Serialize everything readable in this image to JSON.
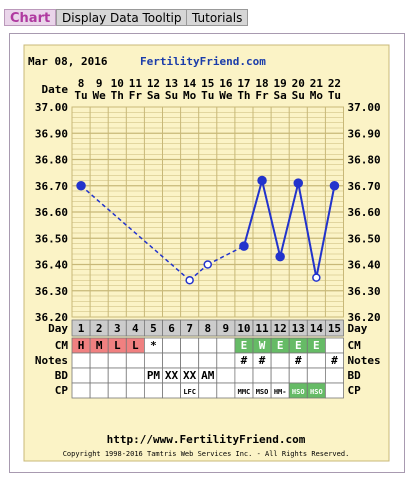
{
  "tabs": [
    {
      "label": "Chart",
      "active": true
    },
    {
      "label": "Display Data Tooltip",
      "active": false
    },
    {
      "label": "Tutorials",
      "active": false
    }
  ],
  "header": {
    "date_label": "Mar 08, 2016",
    "site_label": "FertilityFriend.com",
    "footer_url": "http://www.FertilityFriend.com",
    "copyright": "Copyright 1998-2016 Tamtris Web Services Inc. - All Rights Reserved."
  },
  "row_labels": {
    "date": "Date",
    "day": "Day",
    "cm": "CM",
    "notes": "Notes",
    "bd": "BD",
    "cp": "CP"
  },
  "colors": {
    "background": "#fbf3c6",
    "grid": "#c8b878",
    "line": "#2233cc",
    "cm_red": "#f08080",
    "cm_green": "#66bb66",
    "day_header": "#cccccc"
  },
  "chart_data": {
    "type": "line",
    "title": "",
    "ylabel": "",
    "ylim": [
      36.2,
      37.0
    ],
    "y_ticks": [
      "37.00",
      "36.90",
      "36.80",
      "36.70",
      "36.60",
      "36.50",
      "36.40",
      "36.30",
      "36.20"
    ],
    "dates": [
      "8",
      "9",
      "10",
      "11",
      "12",
      "13",
      "14",
      "15",
      "16",
      "17",
      "18",
      "19",
      "20",
      "21",
      "22"
    ],
    "weekdays": [
      "Tu",
      "We",
      "Th",
      "Fr",
      "Sa",
      "Su",
      "Mo",
      "Tu",
      "We",
      "Th",
      "Fr",
      "Sa",
      "Su",
      "Mo",
      "Tu"
    ],
    "cycle_days": [
      "1",
      "2",
      "3",
      "4",
      "5",
      "6",
      "7",
      "8",
      "9",
      "10",
      "11",
      "12",
      "13",
      "14",
      "15"
    ],
    "temperatures": [
      36.7,
      null,
      null,
      null,
      null,
      null,
      36.34,
      36.4,
      null,
      36.47,
      36.72,
      36.43,
      36.71,
      36.35,
      36.7
    ],
    "open_circle_days": [
      7,
      8,
      14
    ],
    "dashed_segments": [
      [
        1,
        7
      ],
      [
        7,
        8
      ],
      [
        8,
        10
      ]
    ],
    "solid_segments": [
      [
        10,
        11
      ],
      [
        11,
        12
      ],
      [
        12,
        13
      ],
      [
        13,
        14
      ],
      [
        14,
        15
      ]
    ],
    "cm": [
      "H",
      "M",
      "L",
      "L",
      "*",
      "",
      "",
      "",
      "",
      "E",
      "W",
      "E",
      "E",
      "E",
      ""
    ],
    "cm_colors": [
      "red",
      "red",
      "red",
      "red",
      "",
      "",
      "",
      "",
      "",
      "green",
      "green",
      "green",
      "green",
      "green",
      ""
    ],
    "notes": [
      "",
      "",
      "",
      "",
      "",
      "",
      "",
      "",
      "",
      "#",
      "#",
      "",
      "#",
      "",
      "#"
    ],
    "bd": [
      "",
      "",
      "",
      "",
      "PM",
      "XX",
      "XX",
      "AM",
      "",
      "",
      "",
      "",
      "",
      "",
      ""
    ],
    "cp": [
      "",
      "",
      "",
      "",
      "",
      "",
      "LFC",
      "",
      "",
      "MMC",
      "MSO",
      "HM-",
      "HSO",
      "HSO",
      ""
    ],
    "cp_colors": [
      "",
      "",
      "",
      "",
      "",
      "",
      "",
      "",
      "",
      "",
      "",
      "",
      "green",
      "green",
      ""
    ]
  }
}
